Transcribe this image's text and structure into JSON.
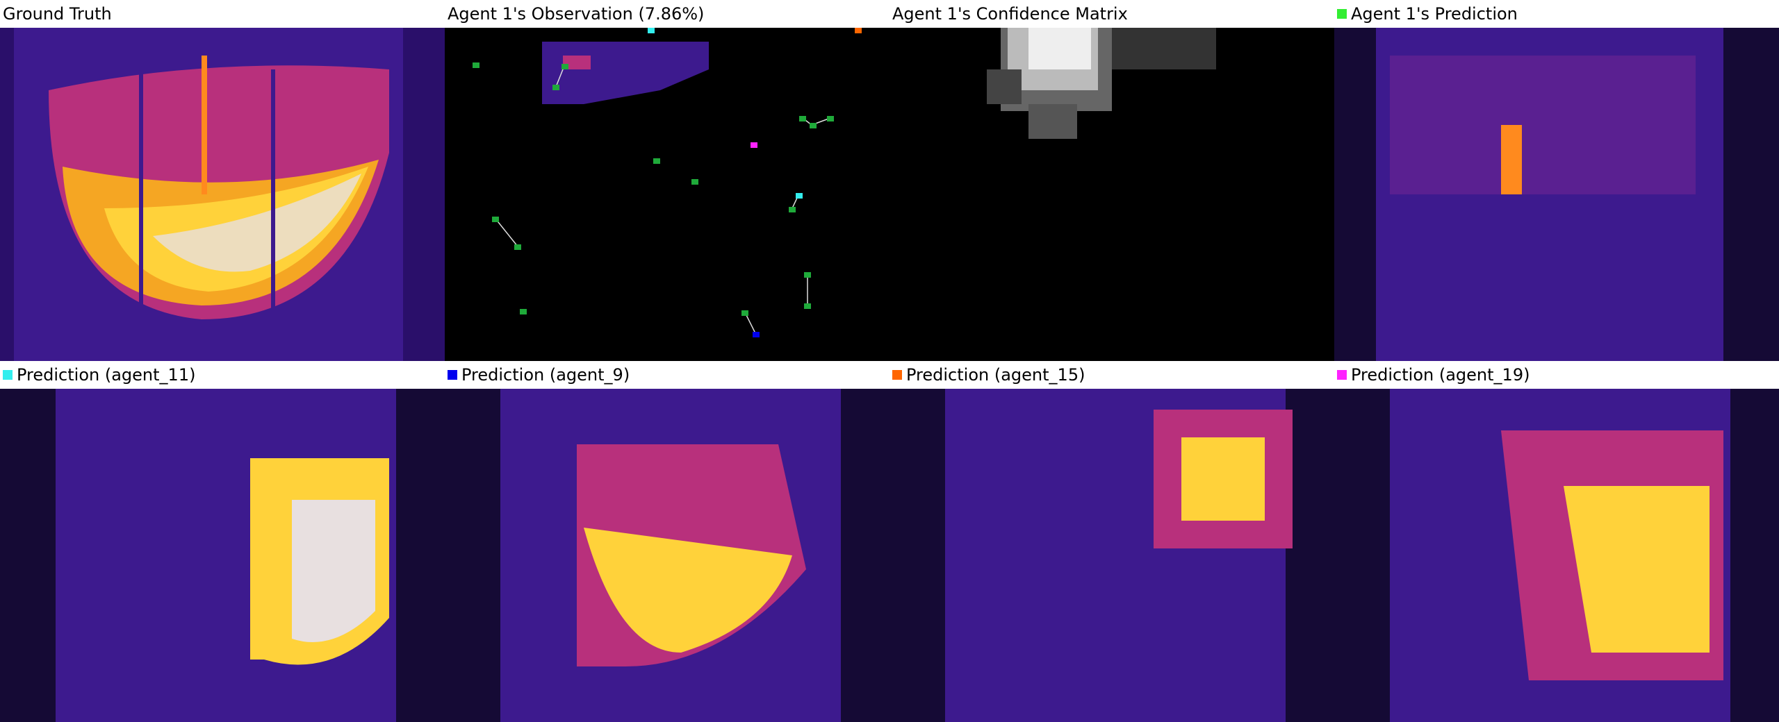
{
  "panels": [
    {
      "id": "ground-truth",
      "title": "Ground Truth"
    },
    {
      "id": "observation",
      "title": "Agent 1's Observation (7.86%)"
    },
    {
      "id": "confidence",
      "title": "Agent 1's Confidence Matrix"
    },
    {
      "id": "prediction",
      "title": "Agent 1's Prediction",
      "swatch": "#33ee33"
    },
    {
      "id": "agent-11",
      "title": "Prediction (agent_11)",
      "swatch": "#33eeee"
    },
    {
      "id": "agent-9",
      "title": "Prediction (agent_9)",
      "swatch": "#0000ee"
    },
    {
      "id": "agent-15",
      "title": "Prediction (agent_15)",
      "swatch": "#ff6600"
    },
    {
      "id": "agent-19",
      "title": "Prediction (agent_19)",
      "swatch": "#ff22ff"
    }
  ],
  "colors": {
    "background": "#3d1a8e",
    "hot": "#ffd23a",
    "warm": "#ff8a1e",
    "white_hot": "#e8e0e0",
    "agent_marker": "#1faa3a"
  }
}
